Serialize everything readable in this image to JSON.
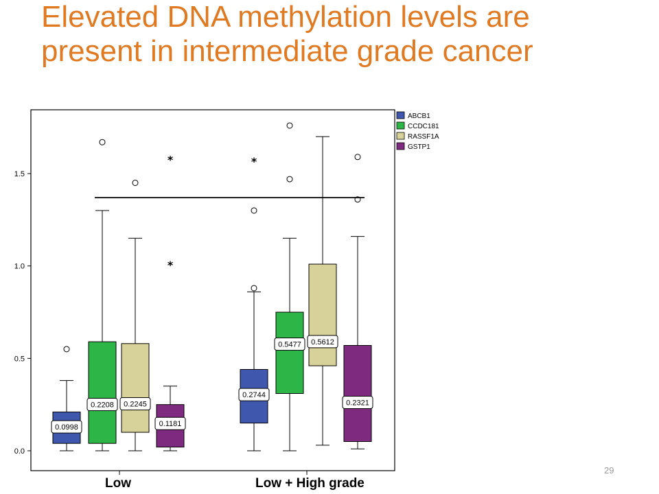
{
  "slide": {
    "title": "Elevated DNA methylation levels are present in intermediate grade cancer",
    "page_number": "29"
  },
  "colors": {
    "title": "#e07a22",
    "ABCB1": "#3f58ad",
    "CCDC181": "#2db548",
    "RASSF1A": "#d7d19a",
    "GSTP1": "#7d2a7f"
  },
  "chart_data": {
    "type": "boxplot",
    "categories": [
      "Low",
      "Low + High grade"
    ],
    "ylim": [
      -0.08,
      1.85
    ],
    "yticks": [
      "0.0",
      "0.5",
      "1.0",
      "1.5"
    ],
    "grid": false,
    "legend_position": "top-right",
    "legend": [
      "ABCB1",
      "CCDC181",
      "RASSF1A",
      "GSTP1"
    ],
    "series": [
      {
        "name": "ABCB1",
        "groups": [
          {
            "category": "Low",
            "min": 0.0,
            "q1": 0.04,
            "median": 0.0998,
            "q3": 0.21,
            "max": 0.38,
            "label": "0.0998",
            "outliers": [
              {
                "value": 0.55,
                "symbol": "o"
              }
            ]
          },
          {
            "category": "Low + High grade",
            "min": 0.0,
            "q1": 0.15,
            "median": 0.2744,
            "q3": 0.44,
            "max": 0.86,
            "label": "0.2744",
            "outliers": [
              {
                "value": 0.88,
                "symbol": "o"
              },
              {
                "value": 1.3,
                "symbol": "o"
              },
              {
                "value": 1.57,
                "symbol": "*"
              }
            ]
          }
        ]
      },
      {
        "name": "CCDC181",
        "groups": [
          {
            "category": "Low",
            "min": 0.0,
            "q1": 0.04,
            "median": 0.2208,
            "q3": 0.59,
            "max": 1.3,
            "label": "0.2208",
            "outliers": [
              {
                "value": 1.67,
                "symbol": "o"
              }
            ]
          },
          {
            "category": "Low + High grade",
            "min": 0.0,
            "q1": 0.31,
            "median": 0.5477,
            "q3": 0.75,
            "max": 1.15,
            "label": "0.5477",
            "outliers": [
              {
                "value": 1.47,
                "symbol": "o"
              },
              {
                "value": 1.76,
                "symbol": "o"
              }
            ]
          }
        ]
      },
      {
        "name": "RASSF1A",
        "groups": [
          {
            "category": "Low",
            "min": 0.0,
            "q1": 0.1,
            "median": 0.2245,
            "q3": 0.58,
            "max": 1.15,
            "label": "0.2245",
            "outliers": [
              {
                "value": 1.45,
                "symbol": "o"
              }
            ]
          },
          {
            "category": "Low + High grade",
            "min": 0.03,
            "q1": 0.46,
            "median": 0.5612,
            "q3": 1.01,
            "max": 1.7,
            "label": "0.5612",
            "outliers": []
          }
        ]
      },
      {
        "name": "GSTP1",
        "groups": [
          {
            "category": "Low",
            "min": 0.0,
            "q1": 0.02,
            "median": 0.1181,
            "q3": 0.25,
            "max": 0.35,
            "label": "0.1181",
            "outliers": [
              {
                "value": 1.01,
                "symbol": "*"
              },
              {
                "value": 1.58,
                "symbol": "*"
              }
            ]
          },
          {
            "category": "Low + High grade",
            "min": 0.01,
            "q1": 0.05,
            "median": 0.2321,
            "q3": 0.57,
            "max": 1.16,
            "label": "0.2321",
            "outliers": [
              {
                "value": 1.36,
                "symbol": "o"
              },
              {
                "value": 1.59,
                "symbol": "o"
              }
            ]
          }
        ]
      }
    ],
    "reference_line": {
      "value": 1.37
    }
  }
}
